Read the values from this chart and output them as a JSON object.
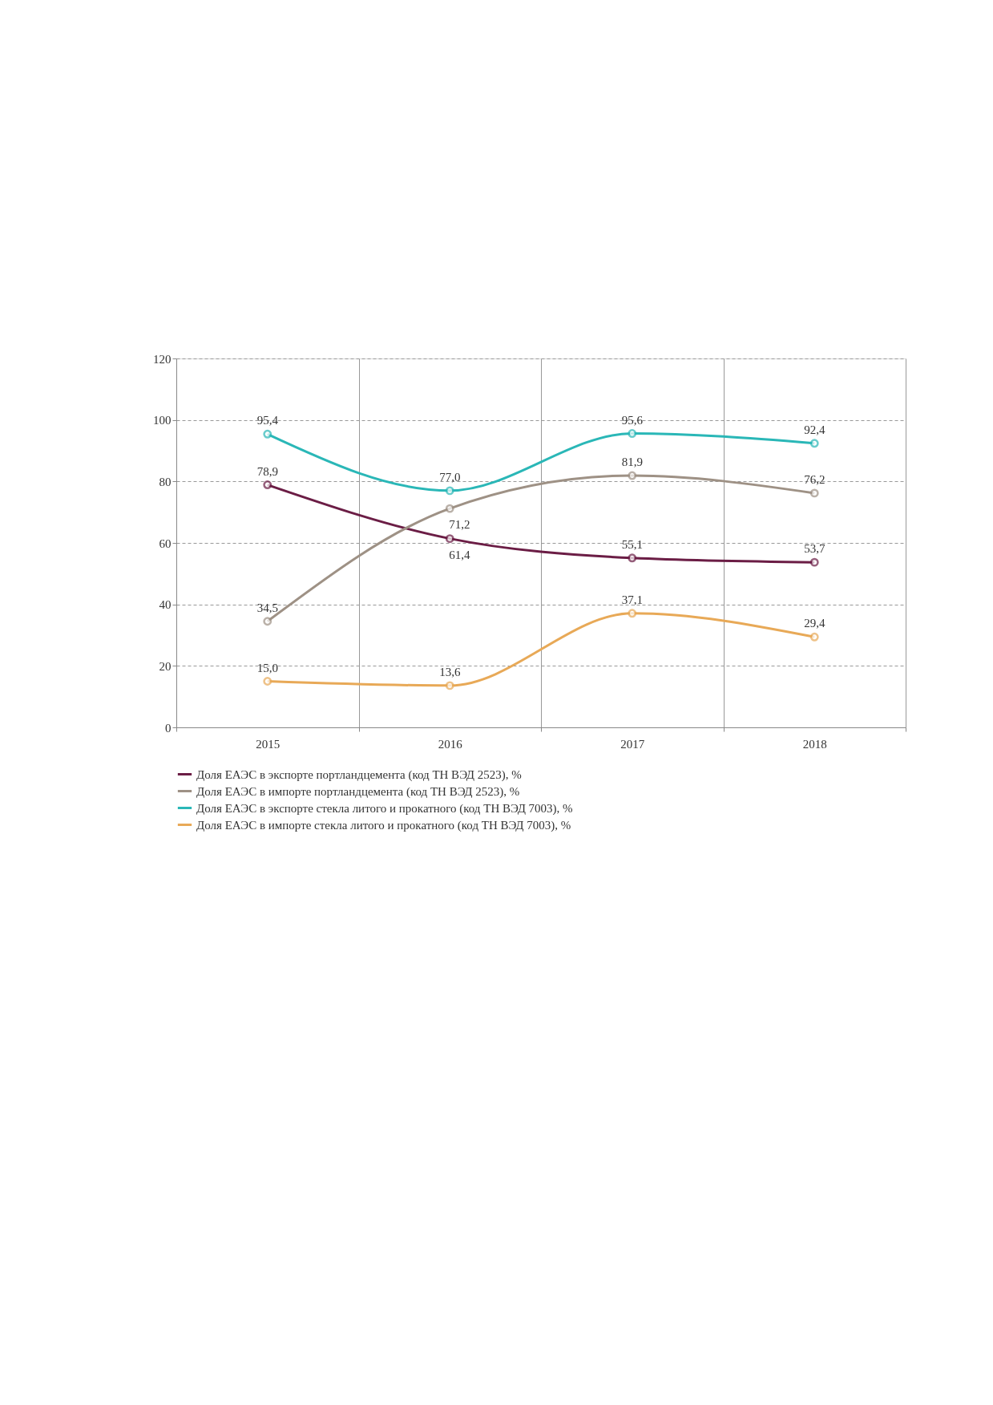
{
  "chart_data": {
    "type": "line",
    "categories": [
      "2015",
      "2016",
      "2017",
      "2018"
    ],
    "series": [
      {
        "name": "Доля ЕАЭС в экспорте портландцемента (код ТН ВЭД 2523), %",
        "color": "#6b1d45",
        "values": [
          78.9,
          61.4,
          55.1,
          53.7
        ],
        "value_labels": [
          "78,9",
          "61,4",
          "55,1",
          "53,7"
        ]
      },
      {
        "name": "Доля ЕАЭС в импорте портландцемента (код ТН ВЭД 2523), %",
        "color": "#9e9185",
        "values": [
          34.5,
          71.2,
          81.9,
          76.2
        ],
        "value_labels": [
          "34,5",
          "71,2",
          "81,9",
          "76,2"
        ]
      },
      {
        "name": "Доля ЕАЭС в экспорте стекла литого и прокатного (код ТН ВЭД 7003), %",
        "color": "#2ab7b7",
        "values": [
          95.4,
          77.0,
          95.6,
          92.4
        ],
        "value_labels": [
          "95,4",
          "77,0",
          "95,6",
          "92,4"
        ]
      },
      {
        "name": "Доля ЕАЭС в импорте стекла литого и прокатного (код ТН ВЭД 7003), %",
        "color": "#e8a957",
        "values": [
          15.0,
          13.6,
          37.1,
          29.4
        ],
        "value_labels": [
          "15,0",
          "13,6",
          "37,1",
          "29,4"
        ]
      }
    ],
    "ylim": [
      0,
      120
    ],
    "yticks": [
      0,
      20,
      40,
      60,
      80,
      100,
      120
    ],
    "grid": true,
    "legend": "bottom",
    "marker": "circle",
    "line_style": "solid"
  }
}
